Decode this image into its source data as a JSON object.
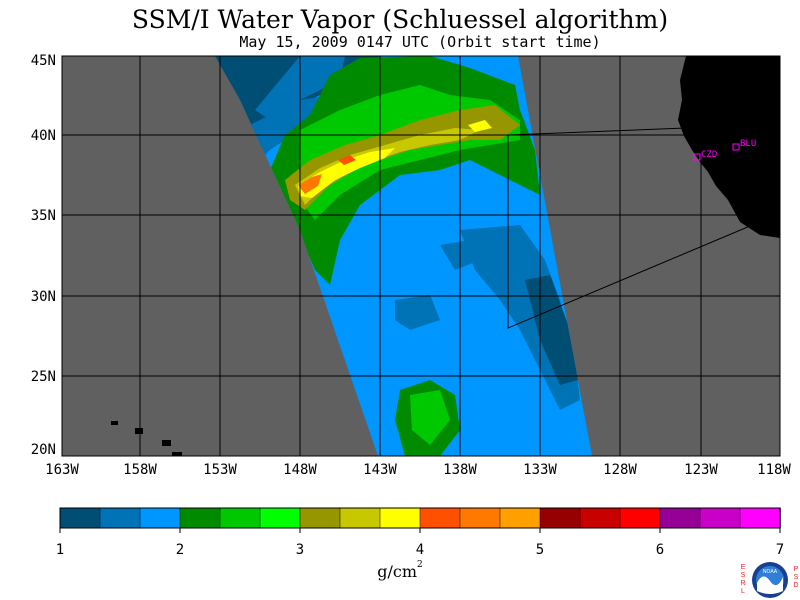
{
  "title": "SSM/I Water Vapor (Schluessel algorithm)",
  "subtitle": "May 15, 2009  0147 UTC  (Orbit start time)",
  "map": {
    "lat_labels": [
      "45N",
      "40N",
      "35N",
      "30N",
      "25N",
      "20N"
    ],
    "lon_labels": [
      "163W",
      "158W",
      "153W",
      "148W",
      "143W",
      "138W",
      "133W",
      "128W",
      "123W",
      "118W"
    ],
    "stations": [
      {
        "name": "CZD",
        "color": "#ff00ff"
      },
      {
        "name": "BLU",
        "color": "#ff00ff"
      }
    ],
    "no_data_color": "#606060",
    "land_color": "#000000"
  },
  "colorbar": {
    "colors": [
      "#004e74",
      "#0072b6",
      "#0096ff",
      "#008a00",
      "#00c800",
      "#00ff00",
      "#969600",
      "#c8c800",
      "#ffff00",
      "#ff5000",
      "#ff7800",
      "#ffa000",
      "#960000",
      "#c80000",
      "#ff0000",
      "#960096",
      "#c800c8",
      "#ff00ff"
    ],
    "tick_labels": [
      "1",
      "2",
      "3",
      "4",
      "5",
      "6",
      "7"
    ],
    "unit": "g/cm",
    "unit_exponent": "2"
  },
  "footer": {
    "left_letters": [
      "E",
      "S",
      "R",
      "L"
    ],
    "right_letters": [
      "P",
      "S",
      "D"
    ],
    "logo_text": "NOAA"
  }
}
